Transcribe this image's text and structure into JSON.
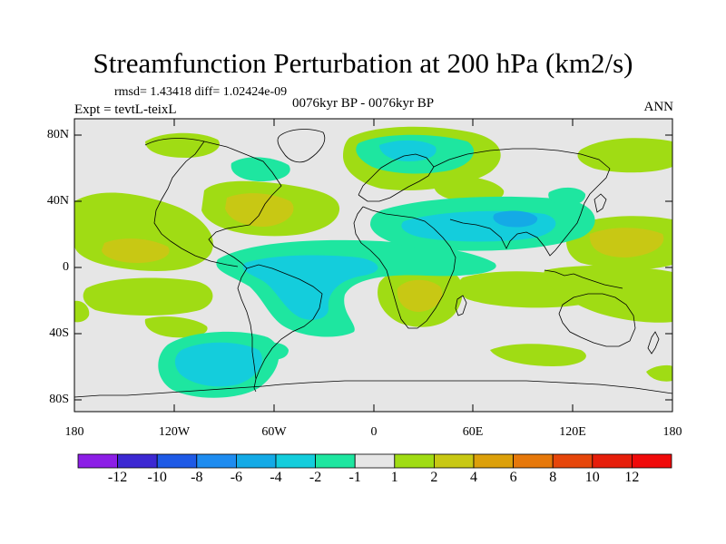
{
  "title": "Streamfunction Perturbation at 200 hPa (km2/s)",
  "stats": "rmsd= 1.43418 diff= 1.02424e-09",
  "period": "0076kyr BP - 0076kyr BP",
  "experiment": "Expt = tevtL-teixL",
  "season": "ANN",
  "lat_labels": [
    "80N",
    "40N",
    "0",
    "40S",
    "80S"
  ],
  "lon_labels": [
    "180",
    "120W",
    "60W",
    "0",
    "60E",
    "120E",
    "180"
  ],
  "colorbar": {
    "labels": [
      "-12",
      "-10",
      "-8",
      "-6",
      "-4",
      "-2",
      "-1",
      "1",
      "2",
      "4",
      "6",
      "8",
      "10",
      "12"
    ],
    "colors": [
      "#8c1ee6",
      "#3c28d2",
      "#1e5ae6",
      "#1e8cf0",
      "#14aae6",
      "#14cddc",
      "#1ee6a0",
      "#e6e6e6",
      "#a0dc14",
      "#c8c814",
      "#dca00a",
      "#e6780a",
      "#e6460a",
      "#e61e0a",
      "#f00a0a"
    ]
  }
}
